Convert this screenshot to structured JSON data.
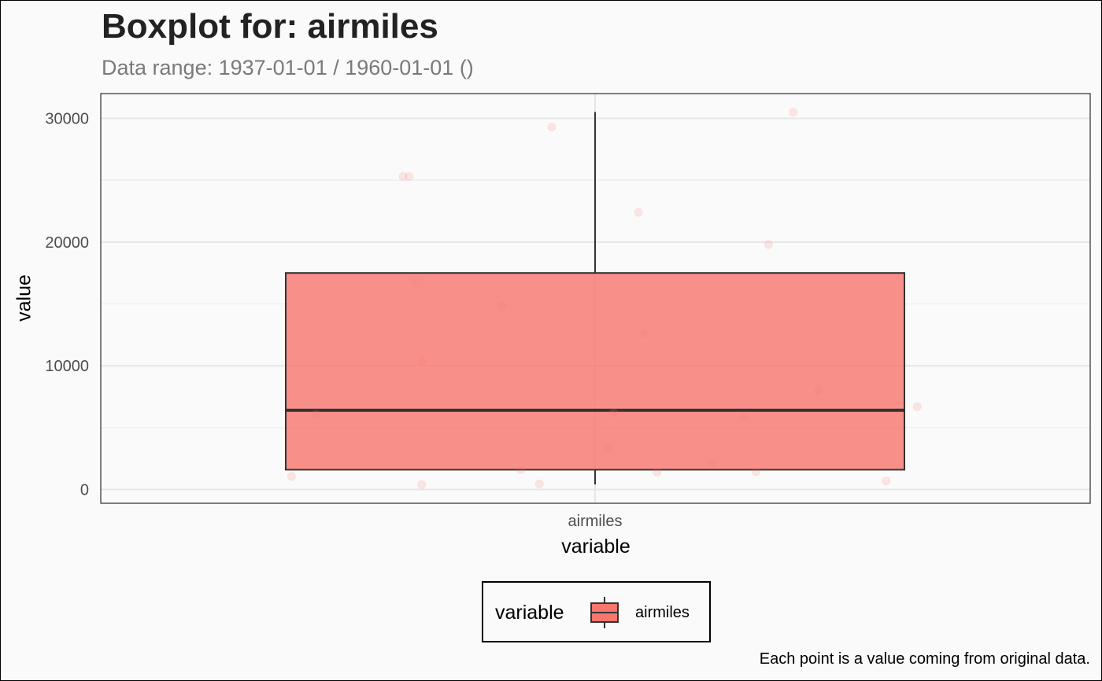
{
  "chart_data": {
    "type": "boxplot",
    "title": "Boxplot for: airmiles",
    "subtitle": "Data range: 1937-01-01 / 1960-01-01 ()",
    "xlabel": "variable",
    "ylabel": "value",
    "categories": [
      "airmiles"
    ],
    "ylim": [
      -1000,
      32000
    ],
    "yticks": [
      0,
      10000,
      20000,
      30000
    ],
    "ytick_labels": [
      "0",
      "10000",
      "20000",
      "30000"
    ],
    "grid": true,
    "box": {
      "category": "airmiles",
      "min": 412,
      "q1": 1600,
      "median": 6400,
      "q3": 17500,
      "max": 30514,
      "fill": "#f8766d",
      "fill_opacity": 0.8
    },
    "points": [
      {
        "x": -0.49,
        "y": 1050
      },
      {
        "x": -0.45,
        "y": 6100
      },
      {
        "x": -0.31,
        "y": 25300
      },
      {
        "x": -0.3,
        "y": 25300
      },
      {
        "x": -0.29,
        "y": 16700
      },
      {
        "x": -0.28,
        "y": 10400
      },
      {
        "x": -0.28,
        "y": 400
      },
      {
        "x": -0.15,
        "y": 14800
      },
      {
        "x": -0.12,
        "y": 1600
      },
      {
        "x": -0.09,
        "y": 450
      },
      {
        "x": -0.07,
        "y": 29300
      },
      {
        "x": 0.02,
        "y": 3300
      },
      {
        "x": 0.03,
        "y": 6200
      },
      {
        "x": 0.07,
        "y": 22400
      },
      {
        "x": 0.08,
        "y": 12600
      },
      {
        "x": 0.1,
        "y": 1400
      },
      {
        "x": 0.19,
        "y": 2200
      },
      {
        "x": 0.24,
        "y": 5800
      },
      {
        "x": 0.26,
        "y": 1450
      },
      {
        "x": 0.28,
        "y": 19800
      },
      {
        "x": 0.32,
        "y": 30500
      },
      {
        "x": 0.36,
        "y": 8000
      },
      {
        "x": 0.47,
        "y": 700
      },
      {
        "x": 0.52,
        "y": 6700
      }
    ],
    "point_color": "#f8766d",
    "point_opacity": 0.15,
    "legend": {
      "title": "variable",
      "entries": [
        {
          "label": "airmiles",
          "color": "#f8766d"
        }
      ],
      "position": "bottom"
    },
    "caption": "Each point is a value coming from original data."
  }
}
